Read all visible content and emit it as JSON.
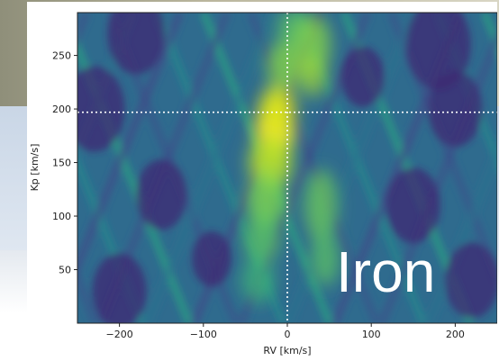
{
  "chart_data": {
    "type": "heatmap",
    "title": "",
    "xlabel": "RV [km/s]",
    "ylabel": "Kp [km/s]",
    "xlim": [
      -250,
      250
    ],
    "ylim": [
      0,
      290
    ],
    "xticks": [
      -200,
      -100,
      0,
      100,
      200
    ],
    "yticks": [
      50,
      100,
      150,
      200,
      250
    ],
    "xtick_labels": [
      "−200",
      "−100",
      "0",
      "100",
      "200"
    ],
    "ytick_labels": [
      "50",
      "100",
      "150",
      "200",
      "250"
    ],
    "colormap": "viridis",
    "peak": {
      "rv": -15,
      "kp": 180
    },
    "crosshair": {
      "rv": 0,
      "kp": 197
    },
    "annotation": "Iron",
    "grid": false
  }
}
